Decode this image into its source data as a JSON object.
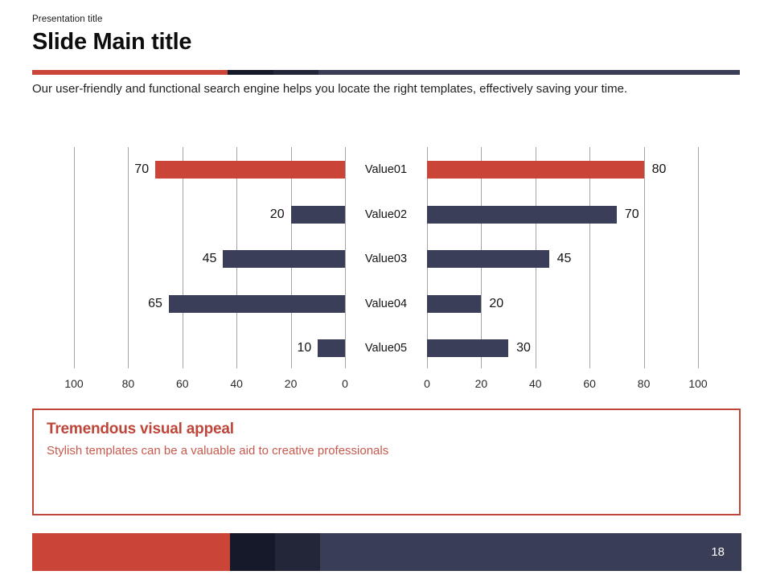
{
  "header": {
    "kicker": "Presentation title",
    "title": "Slide Main title",
    "description": "Our user-friendly and functional search engine helps you locate the right templates, effectively saving your time."
  },
  "chart_data": {
    "type": "bar",
    "orientation": "horizontal",
    "layout": "butterfly",
    "categories": [
      "Value01",
      "Value02",
      "Value03",
      "Value04",
      "Value05"
    ],
    "series": [
      {
        "name": "left",
        "values": [
          70,
          20,
          45,
          65,
          10
        ]
      },
      {
        "name": "right",
        "values": [
          80,
          70,
          45,
          20,
          30
        ]
      }
    ],
    "highlight_index": 0,
    "axis_ticks_left": [
      100,
      80,
      60,
      40,
      20,
      0
    ],
    "axis_ticks_right": [
      0,
      20,
      40,
      60,
      80,
      100
    ],
    "xlim": [
      0,
      100
    ],
    "grid": true,
    "legend": "none",
    "colors": {
      "bar": "#3A3E59",
      "highlight": "#CA4537",
      "gridline": "#A3A3A3"
    }
  },
  "callout": {
    "title": "Tremendous visual appeal",
    "subtitle": "Stylish templates can be a valuable aid to creative professionals"
  },
  "footer": {
    "page_number": "18"
  },
  "colors": {
    "accent_red": "#CA4537",
    "bar_navy": "#3A3E59",
    "footer_navy": "#3A3D56",
    "footer_dark1": "#161929",
    "footer_dark2": "#232639",
    "gridline": "#A3A3A3",
    "callout_red": "#BE4639",
    "callout_subtitle_red": "#C65A4E"
  }
}
